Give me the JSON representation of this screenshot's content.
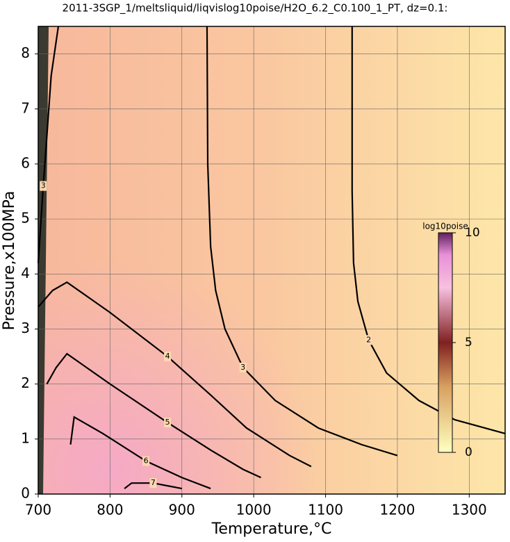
{
  "chart_data": {
    "type": "contour",
    "title": "2011-3SGP_1/meltsliquid/liqvislog10poise/H2O_6.2_C0.100_1_PT, dz=0.1:",
    "x_label": "Temperature,°C",
    "y_label": "Pressure,x100MPa",
    "xlim": [
      700,
      1350
    ],
    "ylim": [
      0,
      8.5
    ],
    "xticks": [
      700,
      800,
      900,
      1000,
      1100,
      1200,
      1300
    ],
    "yticks": [
      0,
      1,
      2,
      3,
      4,
      5,
      6,
      7,
      8
    ],
    "grid": true,
    "contours": [
      {
        "level": 2,
        "x": [
          1137,
          1137,
          1139,
          1145,
          1160,
          1185,
          1230,
          1280,
          1350
        ],
        "y": [
          8.5,
          5.5,
          4.2,
          3.5,
          2.8,
          2.2,
          1.7,
          1.35,
          1.1
        ]
      },
      {
        "level": 3,
        "x": [
          935,
          936,
          940,
          947,
          960,
          985,
          1030,
          1090,
          1150,
          1200
        ],
        "y": [
          8.5,
          6.0,
          4.5,
          3.7,
          3.0,
          2.3,
          1.7,
          1.2,
          0.9,
          0.7
        ]
      },
      {
        "level": 3,
        "x": [
          728,
          718,
          712,
          707,
          703,
          700
        ],
        "y": [
          8.5,
          7.6,
          6.5,
          5.6,
          4.8,
          4.2
        ]
      },
      {
        "level": 4,
        "x": [
          700,
          720,
          740,
          800,
          880,
          940,
          990,
          1050,
          1080
        ],
        "y": [
          3.4,
          3.7,
          3.85,
          3.3,
          2.5,
          1.8,
          1.2,
          0.7,
          0.5
        ]
      },
      {
        "level": 5,
        "x": [
          712,
          725,
          740,
          800,
          880,
          940,
          985,
          1010
        ],
        "y": [
          2.0,
          2.3,
          2.55,
          2.0,
          1.3,
          0.8,
          0.45,
          0.3
        ]
      },
      {
        "level": 6,
        "x": [
          745,
          750,
          790,
          850,
          900,
          940
        ],
        "y": [
          0.9,
          1.4,
          1.1,
          0.6,
          0.3,
          0.1
        ]
      },
      {
        "level": 7,
        "x": [
          820,
          830,
          860,
          880,
          900
        ],
        "y": [
          0.1,
          0.2,
          0.2,
          0.15,
          0.1
        ]
      }
    ],
    "colorbar": {
      "label": "log10poise",
      "lim": [
        0,
        10
      ],
      "ticks": [
        0,
        5,
        10
      ]
    }
  }
}
